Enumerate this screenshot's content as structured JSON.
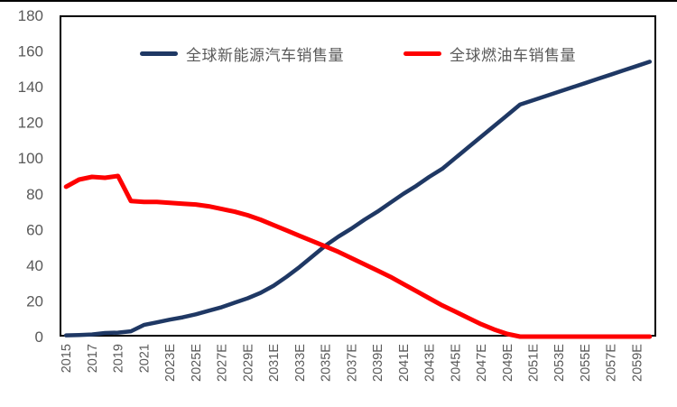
{
  "page": {
    "background": "#ffffff",
    "top_border_color": "#000000"
  },
  "chart_data": {
    "type": "line",
    "title": "",
    "xlabel": "",
    "ylabel": "",
    "ylim": [
      0,
      180
    ],
    "yticks": [
      0,
      20,
      40,
      60,
      80,
      100,
      120,
      140,
      160,
      180
    ],
    "grid": false,
    "legend_position": "top-center",
    "plot_border_color": "#000000",
    "axis_text_color": "#595959",
    "x": [
      2015,
      2016,
      2017,
      2018,
      2019,
      2020,
      2021,
      2022,
      2023,
      2024,
      2025,
      2026,
      2027,
      2028,
      2029,
      2030,
      2031,
      2032,
      2033,
      2034,
      2035,
      2036,
      2037,
      2038,
      2039,
      2040,
      2041,
      2042,
      2043,
      2044,
      2045,
      2046,
      2047,
      2048,
      2049,
      2050,
      2051,
      2052,
      2053,
      2054,
      2055,
      2056,
      2057,
      2058,
      2059,
      2060
    ],
    "x_tick_labels": [
      "2015",
      "2017",
      "2019",
      "2021",
      "2023E",
      "2025E",
      "2027E",
      "2029E",
      "2031E",
      "2033E",
      "2035E",
      "2037E",
      "2039E",
      "2041E",
      "2043E",
      "2045E",
      "2047E",
      "2049E",
      "2051E",
      "2053E",
      "2055E",
      "2057E",
      "2059E"
    ],
    "series": [
      {
        "name": "全球新能源汽车销售量",
        "color": "#1f3864",
        "stroke_width": 4.5,
        "values": [
          0.7,
          0.9,
          1.2,
          2,
          2.2,
          3,
          6.5,
          8,
          9.5,
          10.8,
          12.5,
          14.5,
          16.5,
          19,
          21.5,
          24.5,
          28.5,
          33.5,
          39,
          45,
          51,
          56,
          60.5,
          65.5,
          70,
          75,
          80,
          84.5,
          89.5,
          94,
          100,
          106,
          112,
          118,
          124,
          130,
          132.4,
          134.8,
          137.2,
          139.6,
          142,
          144.4,
          146.8,
          149.2,
          151.6,
          154
        ]
      },
      {
        "name": "全球燃油车销售量",
        "color": "#fe0000",
        "stroke_width": 5,
        "values": [
          84,
          88,
          89.5,
          89,
          90,
          76,
          75.5,
          75.5,
          75,
          74.5,
          74,
          73,
          71.5,
          70,
          68,
          65.5,
          62.5,
          59.5,
          56.5,
          53.5,
          50.5,
          47.5,
          44,
          40.5,
          37,
          33.5,
          29.5,
          25.5,
          21.5,
          17.5,
          14,
          10.5,
          7,
          4,
          1.5,
          0,
          0,
          0,
          0,
          0,
          0,
          0,
          0,
          0,
          0,
          0
        ]
      }
    ]
  }
}
